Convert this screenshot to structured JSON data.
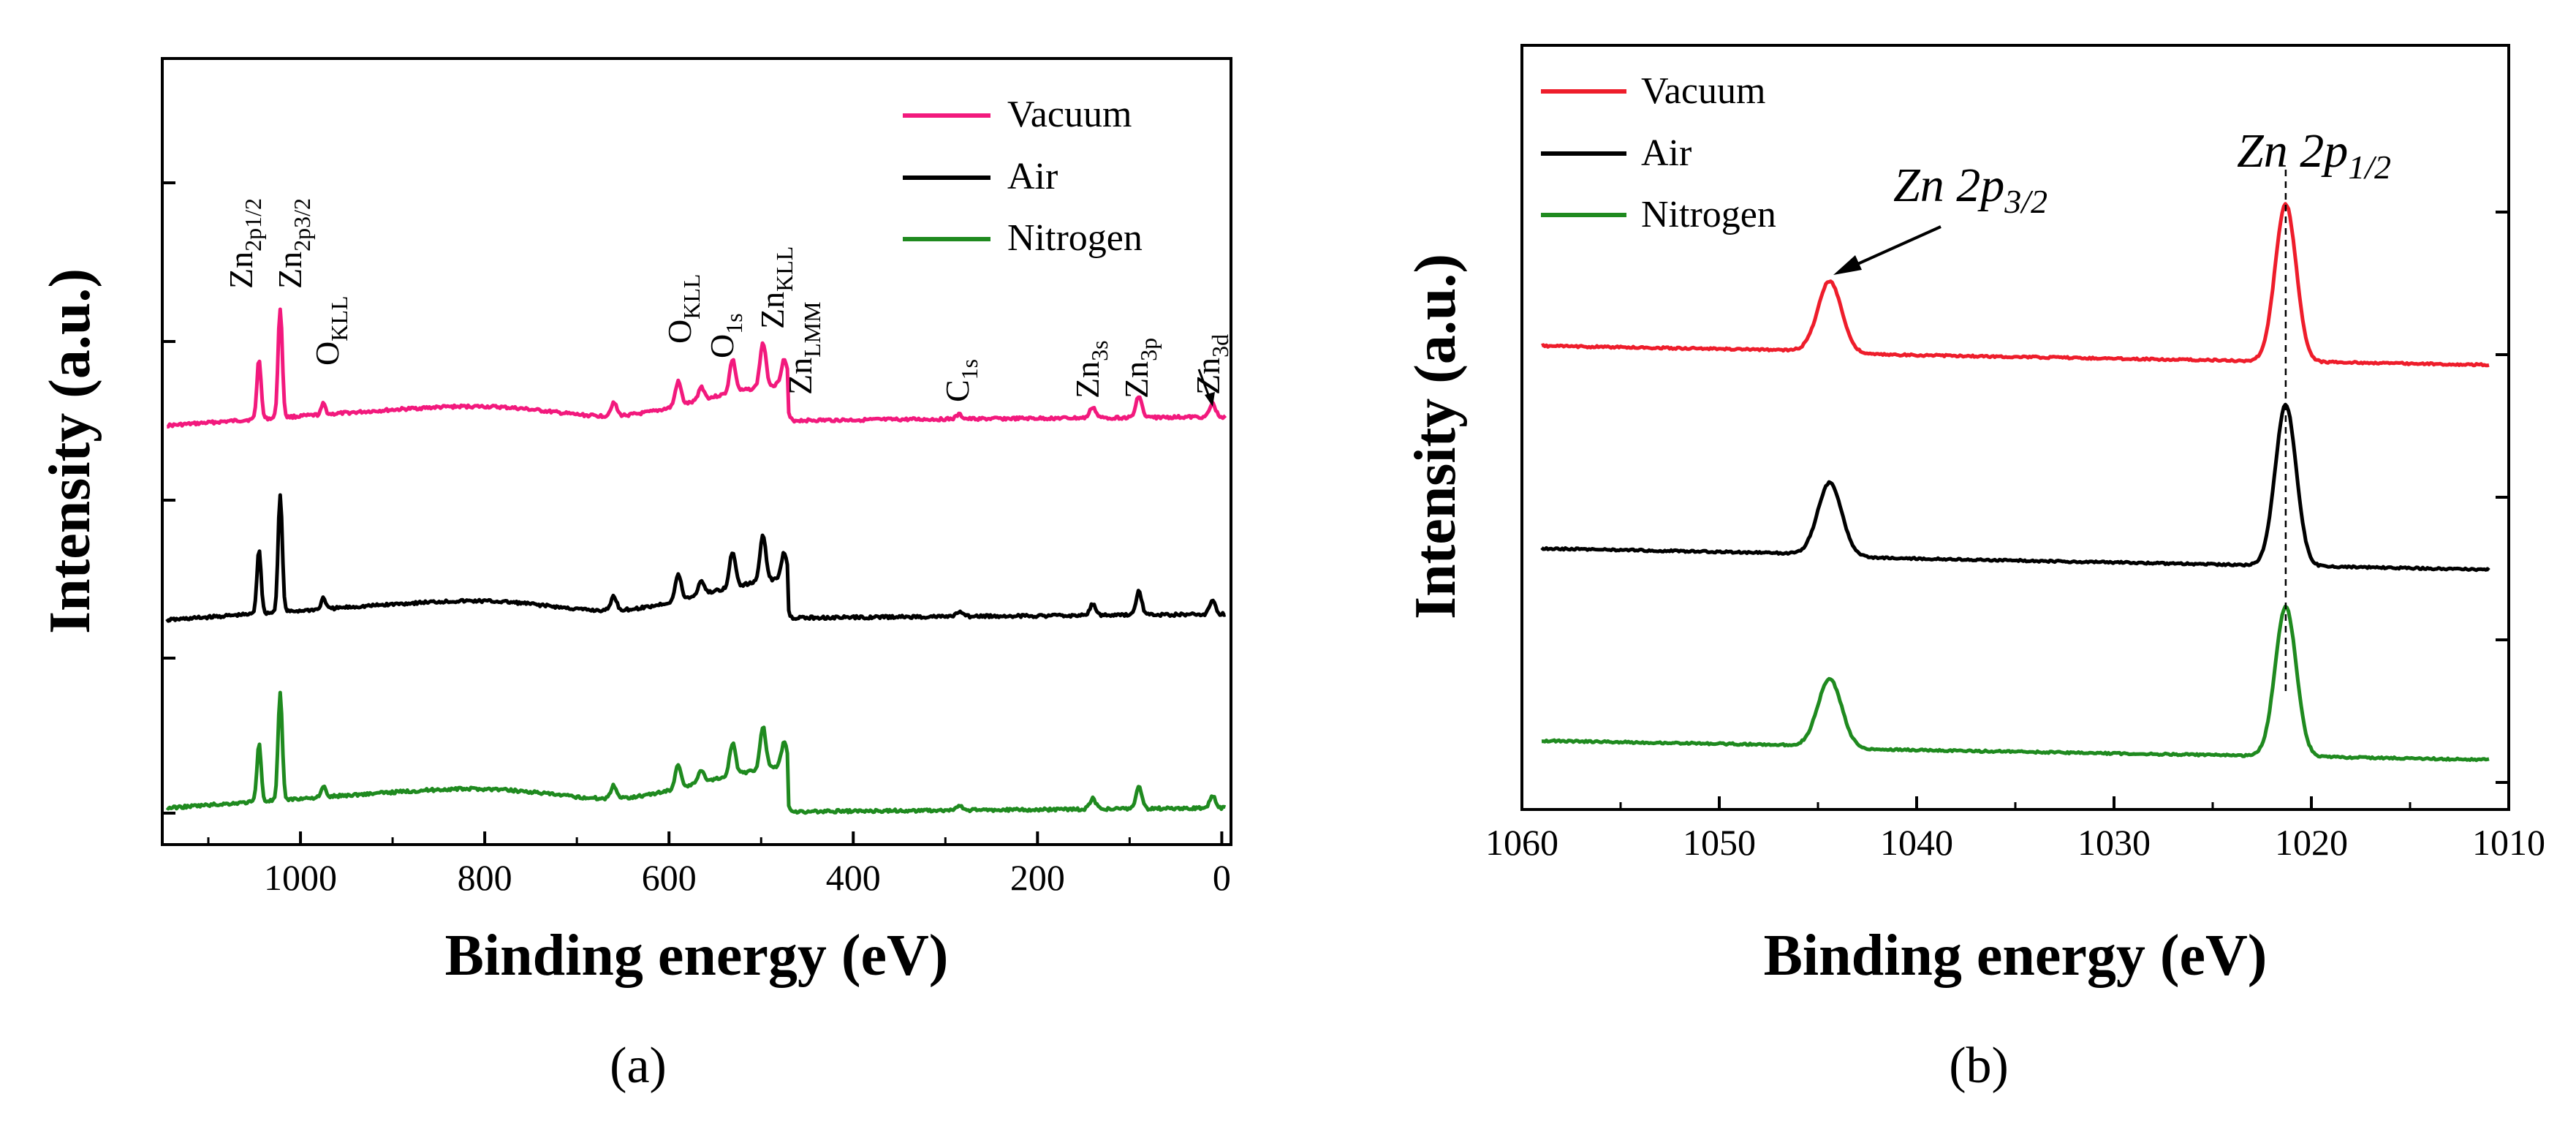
{
  "colors": {
    "vacuum": "#f2197d",
    "air": "#000000",
    "nitrogen": "#1f8a1f",
    "vacuum_b": "#ee1d2b",
    "axis": "#000000"
  },
  "chart_data": [
    {
      "type": "line",
      "panel_label": "(a)",
      "xlabel": "Binding energy (eV)",
      "ylabel": "Intensity (a.u.)",
      "xlim": [
        1150,
        -10
      ],
      "x_ticks": [
        1000,
        800,
        600,
        400,
        200,
        0
      ],
      "x_tick_labels": [
        "1000",
        "800",
        "600",
        "400",
        "200",
        "0"
      ],
      "legend": {
        "position": "top-right",
        "entries": [
          "Vacuum",
          "Air",
          "Nitrogen"
        ]
      },
      "series": [
        {
          "name": "Vacuum",
          "color_key": "vacuum",
          "baseline_start": 0.6,
          "baseline_end": 0.2,
          "step_at": 470,
          "step_drop": 0.0
        },
        {
          "name": "Air",
          "color_key": "air",
          "baseline_start": 0.59,
          "baseline_end": 0.2
        },
        {
          "name": "Nitrogen",
          "color_key": "nitrogen",
          "baseline_start": 0.59,
          "baseline_end": 0.2
        }
      ],
      "peaks": [
        {
          "x": 1045,
          "h": 0.55
        },
        {
          "x": 1022,
          "h": 1.0
        },
        {
          "x": 975,
          "h": 0.1
        },
        {
          "x": 660,
          "h": 0.12
        },
        {
          "x": 590,
          "h": 0.22
        },
        {
          "x": 565,
          "h": 0.12
        },
        {
          "x": 531,
          "h": 0.3
        },
        {
          "x": 498,
          "h": 0.4
        },
        {
          "x": 475,
          "h": 0.22
        },
        {
          "x": 285,
          "h": 0.04
        },
        {
          "x": 140,
          "h": 0.1
        },
        {
          "x": 90,
          "h": 0.2
        },
        {
          "x": 10,
          "h": 0.12
        }
      ],
      "annotations": [
        {
          "base": "Zn",
          "sub": "2p1/2"
        },
        {
          "base": "Zn",
          "sub": "2p3/2"
        },
        {
          "base": "O",
          "sub": "KLL"
        },
        {
          "base": "O",
          "sub": "KLL"
        },
        {
          "base": "O",
          "sub": "1s"
        },
        {
          "base": "Zn",
          "sub": "KLL"
        },
        {
          "base": "Zn",
          "sub": "LMM"
        },
        {
          "base": "C",
          "sub": "1s"
        },
        {
          "base": "Zn",
          "sub": "3s"
        },
        {
          "base": "Zn",
          "sub": "3p"
        },
        {
          "base": "Zn",
          "sub": "3d"
        }
      ]
    },
    {
      "type": "line",
      "panel_label": "(b)",
      "xlabel": "Binding energy (eV)",
      "ylabel": "Intensity (a.u.)",
      "xlim": [
        1060,
        1010
      ],
      "x_ticks": [
        1060,
        1050,
        1040,
        1030,
        1020,
        1010
      ],
      "x_tick_labels": [
        "1060",
        "1050",
        "1040",
        "1030",
        "1020",
        "1010"
      ],
      "legend": {
        "position": "top-left",
        "entries": [
          "Vacuum",
          "Air",
          "Nitrogen"
        ]
      },
      "series": [
        {
          "name": "Vacuum",
          "color_key": "vacuum_b"
        },
        {
          "name": "Air",
          "color_key": "air"
        },
        {
          "name": "Nitrogen",
          "color_key": "nitrogen"
        }
      ],
      "peaks": [
        {
          "x": 1044.4,
          "h": 0.45,
          "w": 0.85
        },
        {
          "x": 1021.3,
          "h": 1.0,
          "w": 0.75
        }
      ],
      "annotations": [
        {
          "text": "Zn 2p",
          "sub": "3/2"
        },
        {
          "text": "Zn 2p",
          "sub": "1/2"
        }
      ]
    }
  ]
}
